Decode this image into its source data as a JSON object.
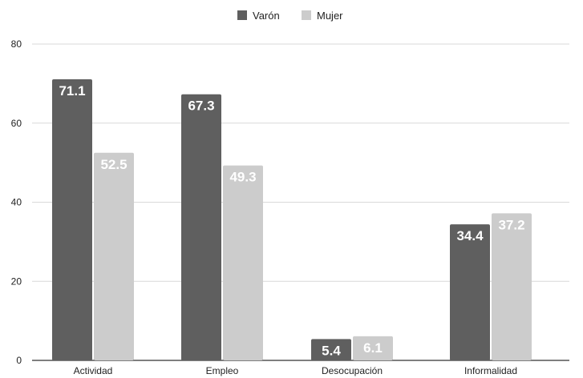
{
  "chart_data": {
    "type": "bar",
    "categories": [
      "Actividad",
      "Empleo",
      "Desocupación",
      "Informalidad"
    ],
    "series": [
      {
        "name": "Varón",
        "values": [
          71.1,
          67.3,
          5.4,
          34.4
        ],
        "color": "#5f5f5f"
      },
      {
        "name": "Mujer",
        "values": [
          52.5,
          49.3,
          6.1,
          37.2
        ],
        "color": "#cccccc"
      }
    ],
    "ylim": [
      0,
      80
    ],
    "yticks": [
      "0",
      "20",
      "40",
      "60",
      "80"
    ],
    "title": "",
    "xlabel": "",
    "ylabel": "",
    "grid": true,
    "legend_position": "top-center",
    "data_labels": true
  }
}
